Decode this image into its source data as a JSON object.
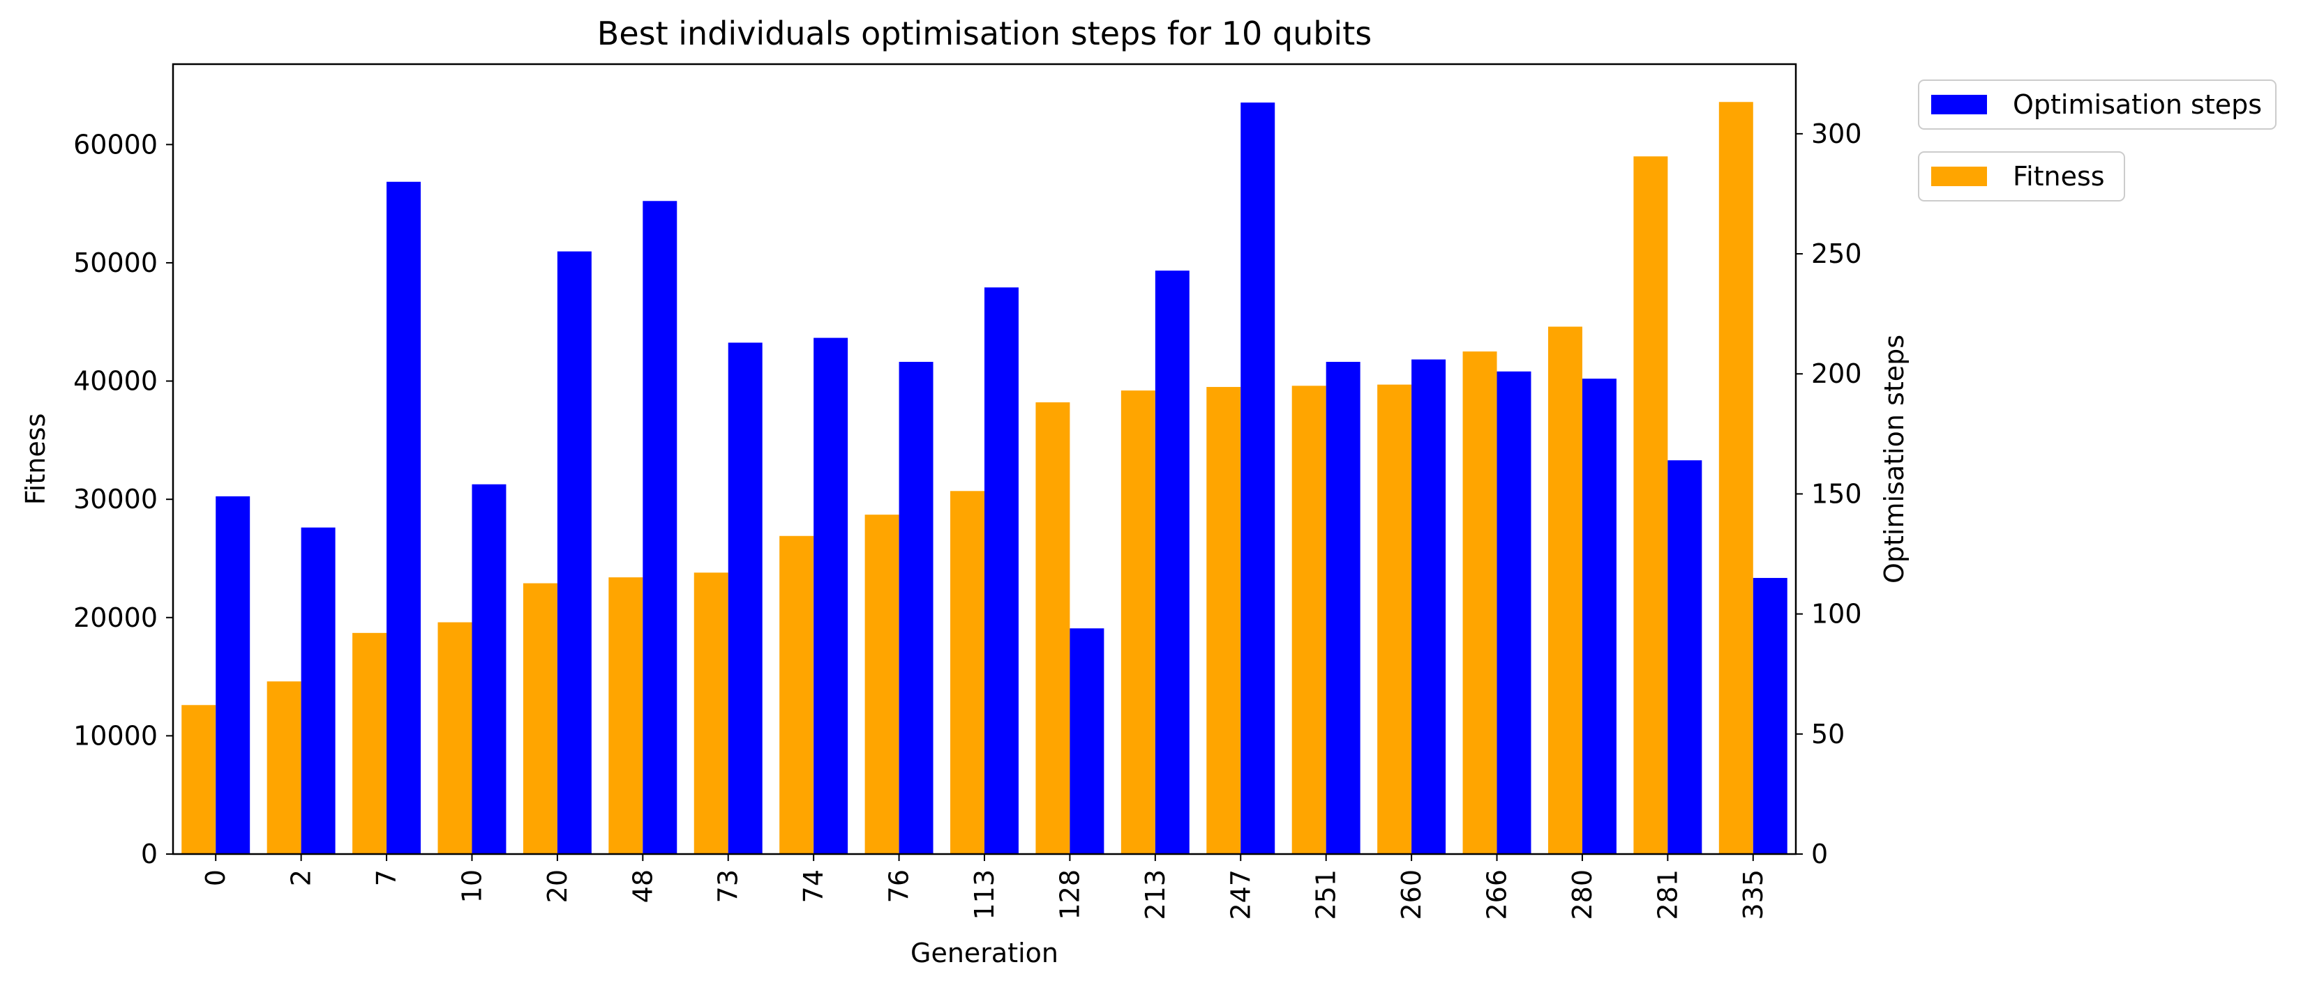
{
  "chart_data": {
    "type": "bar",
    "title": "Best individuals optimisation steps for 10 qubits",
    "xlabel": "Generation",
    "ylabel_left": "Fitness",
    "ylabel_right": "Optimisation steps",
    "categories": [
      "0",
      "2",
      "7",
      "10",
      "20",
      "48",
      "73",
      "74",
      "76",
      "113",
      "128",
      "213",
      "247",
      "251",
      "260",
      "266",
      "280",
      "281",
      "335"
    ],
    "series": [
      {
        "name": "Fitness",
        "axis": "left",
        "color": "#FFA500",
        "values": [
          12600,
          14600,
          18700,
          19600,
          22900,
          23400,
          23800,
          26900,
          28700,
          30700,
          38200,
          39200,
          39500,
          39600,
          39700,
          42500,
          44600,
          59000,
          63600
        ]
      },
      {
        "name": "Optimisation steps",
        "axis": "right",
        "color": "#0000FF",
        "values": [
          149,
          136,
          280,
          154,
          251,
          272,
          213,
          215,
          205,
          236,
          94,
          243,
          313,
          205,
          206,
          201,
          198,
          164,
          115
        ]
      }
    ],
    "ylim_left": [
      0,
      66800
    ],
    "yticks_left": [
      0,
      10000,
      20000,
      30000,
      40000,
      50000,
      60000
    ],
    "ylim_right": [
      0,
      329
    ],
    "yticks_right": [
      0,
      50,
      100,
      150,
      200,
      250,
      300
    ],
    "legend_entries": [
      "Optimisation steps",
      "Fitness"
    ],
    "legend_position": "outside-top-right",
    "grid": false
  }
}
